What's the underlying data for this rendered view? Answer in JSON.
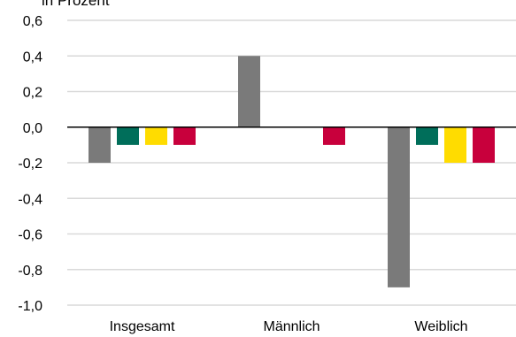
{
  "chart_data": {
    "type": "bar",
    "unit_label": "in Prozent",
    "categories": [
      "Insgesamt",
      "Männlich",
      "Weiblich"
    ],
    "series": [
      {
        "color": "#7a7a7a",
        "values": [
          -0.2,
          0.4,
          -0.9
        ]
      },
      {
        "color": "#006e5a",
        "values": [
          -0.1,
          0.0,
          -0.1
        ]
      },
      {
        "color": "#ffdc00",
        "values": [
          -0.1,
          0.0,
          -0.2
        ]
      },
      {
        "color": "#c8003c",
        "values": [
          -0.1,
          -0.1,
          -0.2
        ]
      }
    ],
    "ylim": [
      -1.0,
      0.6
    ],
    "yticks": [
      0.6,
      0.4,
      0.2,
      0.0,
      -0.2,
      -0.4,
      -0.6,
      -0.8,
      -1.0
    ],
    "ytick_labels": [
      "0,6",
      "0,4",
      "0,2",
      "0,0",
      "-0,2",
      "-0,4",
      "-0,6",
      "-0,8",
      "-1,0"
    ],
    "grid": true,
    "gridline_color": "#d9d9d9"
  }
}
